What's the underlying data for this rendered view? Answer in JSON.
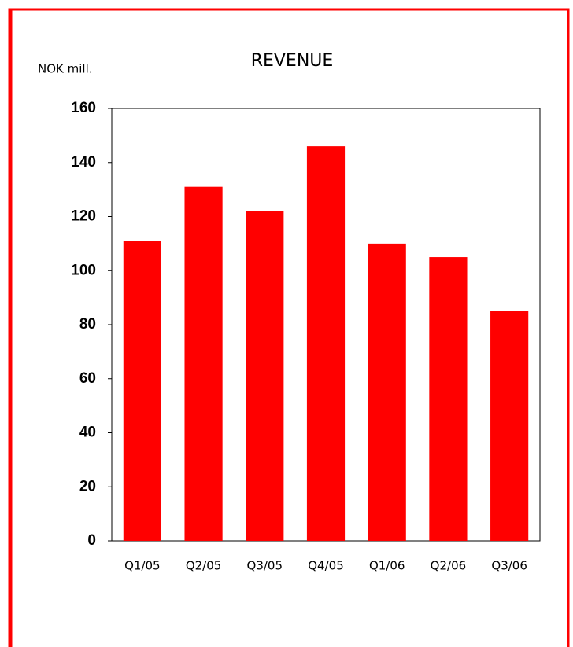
{
  "chart_data": {
    "type": "bar",
    "title": "REVENUE",
    "y_label": "NOK mill.",
    "categories": [
      "Q1/05",
      "Q2/05",
      "Q3/05",
      "Q4/05",
      "Q1/06",
      "Q2/06",
      "Q3/06"
    ],
    "values": [
      111,
      131,
      122,
      146,
      110,
      105,
      85
    ],
    "color": "#ff0000",
    "ylim": [
      0,
      160
    ],
    "yticks": [
      0,
      20,
      40,
      60,
      80,
      100,
      120,
      140,
      160
    ],
    "grid": false
  }
}
